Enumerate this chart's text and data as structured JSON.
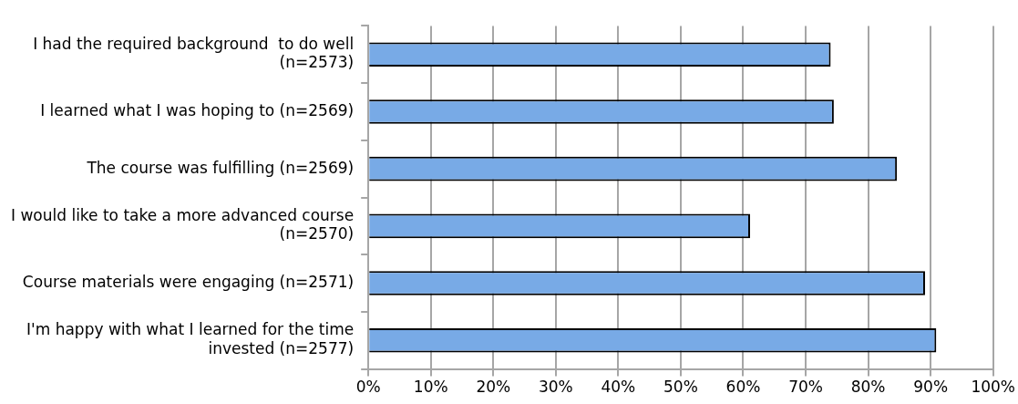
{
  "chart_data": {
    "type": "bar",
    "orientation": "horizontal",
    "categories": [
      "I had the required background  to do well\n(n=2573)",
      "I learned what I was hoping to (n=2569)",
      "The course was fulfilling (n=2569)",
      "I would like to take a more advanced course\n(n=2570)",
      "Course materials were engaging (n=2571)",
      "I'm happy with what I learned for the time\ninvested (n=2577)"
    ],
    "values": [
      74,
      74.5,
      84.6,
      61.1,
      89.1,
      90.9
    ],
    "color": "#78aae6",
    "xlim": [
      0,
      100
    ],
    "xticks": [
      {
        "value": 0,
        "label": "0%"
      },
      {
        "value": 10,
        "label": "10%"
      },
      {
        "value": 20,
        "label": "20%"
      },
      {
        "value": 30,
        "label": "30%"
      },
      {
        "value": 40,
        "label": "40%"
      },
      {
        "value": 50,
        "label": "50%"
      },
      {
        "value": 60,
        "label": "60%"
      },
      {
        "value": 70,
        "label": "70%"
      },
      {
        "value": 80,
        "label": "80%"
      },
      {
        "value": 90,
        "label": "90%"
      },
      {
        "value": 100,
        "label": "100%"
      }
    ],
    "grid": "x"
  }
}
